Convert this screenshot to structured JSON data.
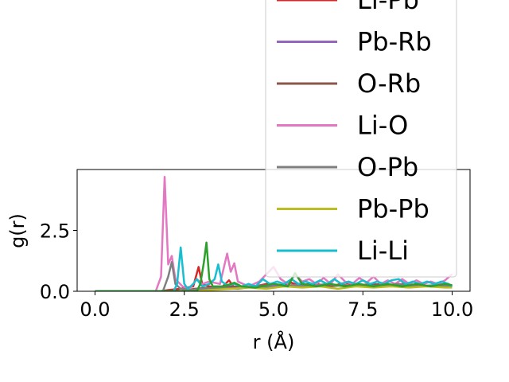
{
  "chart_data": {
    "type": "line",
    "title": "",
    "xlabel": "r (Å)",
    "ylabel": "g(r)",
    "xlim": [
      -0.5,
      10.5
    ],
    "ylim": [
      0,
      5
    ],
    "xticks": [
      0.0,
      2.5,
      5.0,
      7.5,
      10.0
    ],
    "xtick_labels": [
      "0.0",
      "2.5",
      "5.0",
      "7.5",
      "10.0"
    ],
    "yticks": [
      0.0,
      2.5
    ],
    "ytick_labels": [
      "0.0",
      "2.5"
    ],
    "grid": false,
    "legend_position": "upper-right",
    "series": [
      {
        "name": "Li-Pb",
        "color": "#d62728",
        "points": [
          [
            0,
            0
          ],
          [
            1.8,
            0
          ],
          [
            2.05,
            0.05
          ],
          [
            2.4,
            0.1
          ],
          [
            2.75,
            0.2
          ],
          [
            2.9,
            1.0
          ],
          [
            3.0,
            0.3
          ],
          [
            3.2,
            0.2
          ],
          [
            3.5,
            0.1
          ],
          [
            3.65,
            0.3
          ],
          [
            3.75,
            0.45
          ],
          [
            3.9,
            0.15
          ],
          [
            4.3,
            0.15
          ],
          [
            4.8,
            0.3
          ],
          [
            5.2,
            0.25
          ],
          [
            5.5,
            0.35
          ],
          [
            5.8,
            0.2
          ],
          [
            6.2,
            0.3
          ],
          [
            6.6,
            0.2
          ],
          [
            7.0,
            0.35
          ],
          [
            7.4,
            0.25
          ],
          [
            7.8,
            0.3
          ],
          [
            8.2,
            0.2
          ],
          [
            8.6,
            0.3
          ],
          [
            9.0,
            0.25
          ],
          [
            9.4,
            0.2
          ],
          [
            9.8,
            0.25
          ],
          [
            10,
            0.2
          ]
        ]
      },
      {
        "name": "Pb-Rb",
        "color": "#9467bd",
        "points": [
          [
            0,
            0
          ],
          [
            2.5,
            0
          ],
          [
            2.9,
            0.05
          ],
          [
            3.3,
            0.1
          ],
          [
            3.8,
            0.15
          ],
          [
            4.3,
            0.2
          ],
          [
            4.8,
            0.25
          ],
          [
            5.3,
            0.2
          ],
          [
            5.8,
            0.3
          ],
          [
            6.3,
            0.2
          ],
          [
            6.8,
            0.25
          ],
          [
            7.3,
            0.2
          ],
          [
            7.8,
            0.3
          ],
          [
            8.3,
            0.2
          ],
          [
            8.8,
            0.25
          ],
          [
            9.3,
            0.2
          ],
          [
            9.8,
            0.3
          ],
          [
            10,
            0.2
          ]
        ]
      },
      {
        "name": "O-Rb",
        "color": "#8c564b",
        "points": [
          [
            0,
            0
          ],
          [
            2.4,
            0
          ],
          [
            2.8,
            0.1
          ],
          [
            3.2,
            0.15
          ],
          [
            3.8,
            0.2
          ],
          [
            4.4,
            0.15
          ],
          [
            5.0,
            0.3
          ],
          [
            5.5,
            0.2
          ],
          [
            6.0,
            0.3
          ],
          [
            6.5,
            0.2
          ],
          [
            7.0,
            0.25
          ],
          [
            7.5,
            0.2
          ],
          [
            8.0,
            0.3
          ],
          [
            8.5,
            0.2
          ],
          [
            9.0,
            0.25
          ],
          [
            9.5,
            0.2
          ],
          [
            10,
            0.25
          ]
        ]
      },
      {
        "name": "Li-O",
        "color": "#e377c2",
        "points": [
          [
            0,
            0
          ],
          [
            1.7,
            0
          ],
          [
            1.85,
            0.6
          ],
          [
            1.95,
            4.7
          ],
          [
            2.05,
            1.1
          ],
          [
            2.15,
            1.45
          ],
          [
            2.25,
            0.5
          ],
          [
            2.45,
            0.2
          ],
          [
            2.65,
            0.1
          ],
          [
            2.85,
            0.5
          ],
          [
            3.0,
            0.3
          ],
          [
            3.2,
            0.4
          ],
          [
            3.5,
            0.3
          ],
          [
            3.7,
            1.55
          ],
          [
            3.8,
            0.8
          ],
          [
            3.9,
            1.15
          ],
          [
            4.0,
            0.4
          ],
          [
            4.3,
            0.2
          ],
          [
            4.6,
            0.4
          ],
          [
            4.8,
            0.7
          ],
          [
            5.0,
            1.0
          ],
          [
            5.2,
            0.5
          ],
          [
            5.4,
            0.3
          ],
          [
            5.6,
            0.7
          ],
          [
            5.8,
            0.4
          ],
          [
            6.0,
            0.5
          ],
          [
            6.2,
            0.3
          ],
          [
            6.4,
            0.55
          ],
          [
            6.6,
            0.3
          ],
          [
            6.8,
            0.7
          ],
          [
            7.0,
            0.4
          ],
          [
            7.2,
            0.3
          ],
          [
            7.4,
            0.55
          ],
          [
            7.6,
            0.35
          ],
          [
            7.8,
            0.6
          ],
          [
            8.0,
            0.3
          ],
          [
            8.2,
            0.45
          ],
          [
            8.4,
            0.3
          ],
          [
            8.6,
            0.5
          ],
          [
            8.8,
            0.3
          ],
          [
            9.0,
            0.45
          ],
          [
            9.2,
            0.3
          ],
          [
            9.4,
            0.4
          ],
          [
            9.6,
            0.3
          ],
          [
            9.8,
            0.45
          ],
          [
            10,
            0.7
          ]
        ]
      },
      {
        "name": "O-Pb",
        "color": "#7f7f7f",
        "points": [
          [
            0,
            0
          ],
          [
            1.9,
            0
          ],
          [
            2.05,
            0.6
          ],
          [
            2.15,
            1.2
          ],
          [
            2.25,
            0.3
          ],
          [
            2.4,
            0.1
          ],
          [
            2.7,
            0.05
          ],
          [
            3.0,
            0.1
          ],
          [
            3.5,
            0.15
          ],
          [
            4.0,
            0.1
          ],
          [
            4.5,
            0.2
          ],
          [
            5.0,
            0.15
          ],
          [
            5.5,
            0.25
          ],
          [
            6.0,
            0.2
          ],
          [
            6.5,
            0.3
          ],
          [
            7.0,
            0.2
          ],
          [
            7.5,
            0.25
          ],
          [
            8.0,
            0.2
          ],
          [
            8.5,
            0.3
          ],
          [
            9.0,
            0.2
          ],
          [
            9.5,
            0.25
          ],
          [
            10,
            0.2
          ]
        ]
      },
      {
        "name": "Pb-Pb",
        "color": "#bcbd22",
        "points": [
          [
            0,
            0
          ],
          [
            2.8,
            0
          ],
          [
            3.2,
            0.05
          ],
          [
            3.8,
            0.1
          ],
          [
            4.3,
            0.15
          ],
          [
            4.8,
            0.1
          ],
          [
            5.3,
            0.2
          ],
          [
            5.8,
            0.15
          ],
          [
            6.3,
            0.2
          ],
          [
            6.8,
            0.1
          ],
          [
            7.3,
            0.2
          ],
          [
            7.8,
            0.15
          ],
          [
            8.3,
            0.2
          ],
          [
            8.8,
            0.15
          ],
          [
            9.3,
            0.2
          ],
          [
            9.8,
            0.15
          ],
          [
            10,
            0.15
          ]
        ]
      },
      {
        "name": "Li-Li",
        "color": "#17becf",
        "points": [
          [
            0,
            0
          ],
          [
            2.2,
            0
          ],
          [
            2.3,
            0.3
          ],
          [
            2.4,
            1.8
          ],
          [
            2.5,
            0.3
          ],
          [
            2.6,
            0.1
          ],
          [
            2.75,
            0.3
          ],
          [
            2.85,
            0.5
          ],
          [
            3.0,
            0.2
          ],
          [
            3.2,
            0.3
          ],
          [
            3.35,
            0.5
          ],
          [
            3.45,
            1.1
          ],
          [
            3.55,
            0.4
          ],
          [
            3.7,
            0.25
          ],
          [
            3.9,
            0.3
          ],
          [
            4.1,
            0.2
          ],
          [
            4.3,
            0.3
          ],
          [
            4.5,
            0.2
          ],
          [
            4.7,
            0.5
          ],
          [
            4.9,
            0.3
          ],
          [
            5.1,
            0.4
          ],
          [
            5.3,
            0.3
          ],
          [
            5.5,
            0.5
          ],
          [
            5.7,
            0.3
          ],
          [
            5.9,
            0.4
          ],
          [
            6.1,
            0.3
          ],
          [
            6.3,
            0.45
          ],
          [
            6.5,
            0.3
          ],
          [
            6.7,
            0.5
          ],
          [
            6.9,
            0.3
          ],
          [
            7.1,
            0.4
          ],
          [
            7.3,
            0.3
          ],
          [
            7.5,
            0.45
          ],
          [
            7.7,
            0.3
          ],
          [
            7.9,
            0.4
          ],
          [
            8.1,
            0.3
          ],
          [
            8.3,
            0.45
          ],
          [
            8.5,
            0.5
          ],
          [
            8.7,
            0.3
          ],
          [
            8.9,
            0.4
          ],
          [
            9.1,
            0.3
          ],
          [
            9.3,
            0.4
          ],
          [
            9.5,
            0.3
          ],
          [
            9.7,
            0.4
          ],
          [
            9.9,
            0.3
          ],
          [
            10,
            0.2
          ]
        ]
      },
      {
        "name": "",
        "color": "#2ca02c",
        "points": [
          [
            0,
            0
          ],
          [
            2.85,
            0
          ],
          [
            2.95,
            0.3
          ],
          [
            3.05,
            1.2
          ],
          [
            3.12,
            2.0
          ],
          [
            3.2,
            0.5
          ],
          [
            3.3,
            0.2
          ],
          [
            3.6,
            0.2
          ],
          [
            3.9,
            0.35
          ],
          [
            4.1,
            0.2
          ],
          [
            4.5,
            0.15
          ],
          [
            5.0,
            0.3
          ],
          [
            5.4,
            0.2
          ],
          [
            5.6,
            0.75
          ],
          [
            5.8,
            0.3
          ],
          [
            6.2,
            0.2
          ],
          [
            6.6,
            0.3
          ],
          [
            7.0,
            0.2
          ],
          [
            7.4,
            0.3
          ],
          [
            7.8,
            0.2
          ],
          [
            8.2,
            0.3
          ],
          [
            8.6,
            0.2
          ],
          [
            9.0,
            0.3
          ],
          [
            9.4,
            0.2
          ],
          [
            9.8,
            0.3
          ],
          [
            10,
            0.25
          ]
        ]
      }
    ],
    "legend": [
      {
        "label": "Li-Pb",
        "color": "#d62728"
      },
      {
        "label": "Pb-Rb",
        "color": "#9467bd"
      },
      {
        "label": "O-Rb",
        "color": "#8c564b"
      },
      {
        "label": "Li-O",
        "color": "#e377c2"
      },
      {
        "label": "O-Pb",
        "color": "#7f7f7f"
      },
      {
        "label": "Pb-Pb",
        "color": "#bcbd22"
      },
      {
        "label": "Li-Li",
        "color": "#17becf"
      }
    ]
  }
}
